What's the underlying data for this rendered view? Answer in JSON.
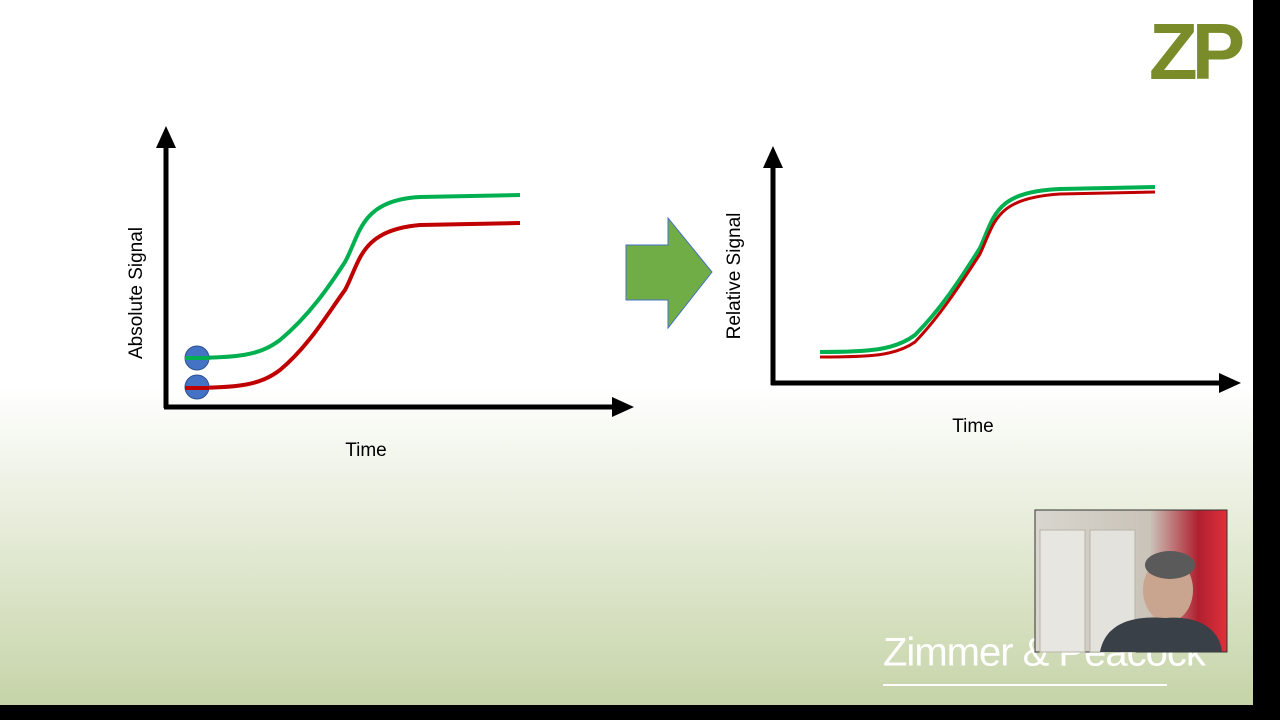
{
  "logo": {
    "text": "ZP"
  },
  "left_diagram": {
    "y_label": "Absolute Signal",
    "x_label": "Time"
  },
  "right_diagram": {
    "y_label": "Relative Signal",
    "x_label": "Time"
  },
  "footer": {
    "company": "Zimmer & Peacock"
  }
}
